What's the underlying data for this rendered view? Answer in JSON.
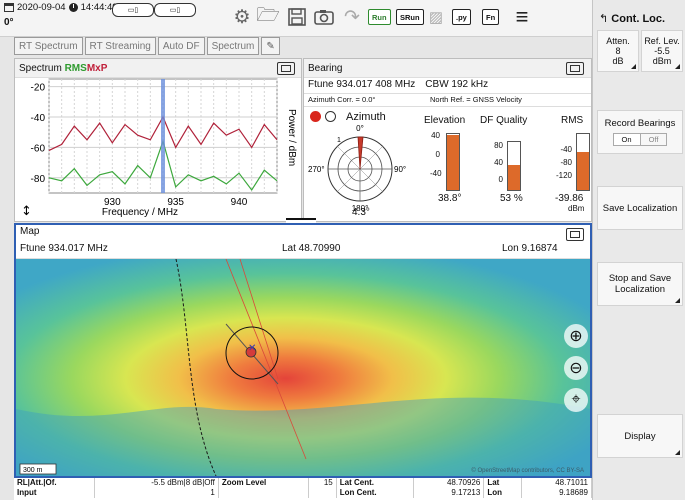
{
  "status": {
    "date": "2020-09-04",
    "time": "14:44:49",
    "heading": "0°"
  },
  "toolbar": {
    "run": "Run",
    "srun": "SRun",
    "py": ".py",
    "fn": "Fn"
  },
  "tabs": [
    {
      "label": "RT Spectrum"
    },
    {
      "label": "RT Streaming"
    },
    {
      "label": "Auto DF"
    },
    {
      "label": "Spectrum"
    }
  ],
  "spectrum": {
    "title": "Spectrum",
    "tag_rms": "RMS",
    "tag_mxp": "MxP",
    "xlabel": "Frequency / MHz",
    "ylabel": "Power / dBm",
    "colors": {
      "rms": "#3da83d",
      "mxp": "#b0223a",
      "marker": "#6a8fdc"
    }
  },
  "chart_data": {
    "type": "line",
    "title": "Spectrum",
    "xlabel": "Frequency / MHz",
    "ylabel": "Power / dBm",
    "x": [
      925,
      926,
      927,
      928,
      929,
      930,
      931,
      932,
      933,
      934,
      935,
      936,
      937,
      938,
      939,
      940,
      941,
      942,
      943
    ],
    "series": [
      {
        "name": "MxP",
        "values": [
          -62,
          -58,
          -46,
          -55,
          -44,
          -57,
          -45,
          -52,
          -55,
          -40,
          -60,
          -46,
          -58,
          -44,
          -52,
          -48,
          -60,
          -45,
          -55
        ]
      },
      {
        "name": "RMS",
        "values": [
          -80,
          -82,
          -74,
          -85,
          -78,
          -76,
          -84,
          -72,
          -80,
          -56,
          -86,
          -78,
          -82,
          -79,
          -84,
          -77,
          -88,
          -75,
          -82
        ]
      }
    ],
    "xticks": [
      930,
      935,
      940
    ],
    "yticks": [
      -20,
      -40,
      -60,
      -80
    ],
    "xlim": [
      925,
      943
    ],
    "ylim": [
      -90,
      -15
    ],
    "marker_x": 934
  },
  "bearing": {
    "title": "Bearing",
    "ftune": "Ftune  934.017 408 MHz",
    "cbw": "CBW  192 kHz",
    "az_corr": "Azimuth Corr. =  0.0°",
    "north_ref": "North Ref. = GNSS Velocity",
    "azimuth_label": "Azimuth",
    "compass": {
      "n": "0°",
      "e": "90°",
      "s": "180°",
      "w": "270°",
      "r1": "1"
    },
    "azimuth_value": "4.3°",
    "elevation": {
      "label": "Elevation",
      "ticks": [
        "40",
        "0",
        "-40"
      ],
      "value": "38.8°",
      "level": 0.98
    },
    "quality": {
      "label": "DF Quality",
      "ticks": [
        "80",
        "40",
        "0"
      ],
      "value": "53 %",
      "level": 0.53
    },
    "rms": {
      "label": "RMS",
      "ticks": [
        "-40",
        "-80",
        "-120"
      ],
      "value": "-39.86",
      "unit": "dBm",
      "level": 0.67
    },
    "bar_color": "#dd6a2a"
  },
  "map": {
    "title": "Map",
    "ftune": "Ftune  934.017 MHz",
    "lat": "Lat  48.70990",
    "lon": "Lon  9.16874",
    "scale": "300 m",
    "attribution": "© OpenStreetMap contributors, CC BY-SA"
  },
  "sidebar": {
    "title": "Cont. Loc.",
    "atten_label": "Atten.",
    "atten_value": "8",
    "atten_unit": "dB",
    "ref_label": "Ref. Lev.",
    "ref_value": "-5.5",
    "ref_unit": "dBm",
    "record_label": "Record Bearings",
    "on": "On",
    "off": "Off",
    "save_label": "Save Localization",
    "stop_label": "Stop and Save Localization",
    "display_label": "Display"
  },
  "bottom": {
    "r1c1": "RL|Att.|Of.",
    "r1c2": "-5.5 dBm|8 dB|Off",
    "r1c3": "Zoom Level",
    "r1c4": "15",
    "r1c5": "Lat Cent.",
    "r1c6": "48.70926",
    "r1c7": "Lat",
    "r1c8": "48.71011",
    "r2c1": "Input",
    "r2c2": "1",
    "r2c5": "Lon Cent.",
    "r2c6": "9.17213",
    "r2c7": "Lon",
    "r2c8": "9.18689"
  }
}
